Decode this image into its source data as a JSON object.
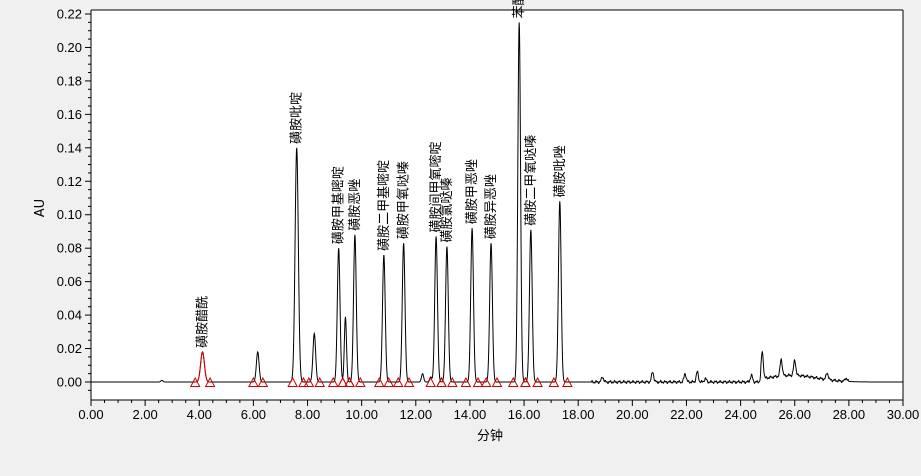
{
  "chart_data": {
    "type": "line",
    "xlabel": "分钟",
    "ylabel": "AU",
    "xlim": [
      0,
      30
    ],
    "ylim": [
      -0.012,
      0.222
    ],
    "x_ticks": [
      "0.00",
      "2.00",
      "4.00",
      "6.00",
      "8.00",
      "10.00",
      "12.00",
      "14.00",
      "16.00",
      "18.00",
      "20.00",
      "22.00",
      "24.00",
      "26.00",
      "28.00",
      "30.00"
    ],
    "y_ticks": [
      "0.00",
      "0.02",
      "0.04",
      "0.06",
      "0.08",
      "0.10",
      "0.12",
      "0.14",
      "0.16",
      "0.18",
      "0.20",
      "0.22"
    ],
    "grid": false,
    "line_color": "#000000",
    "marker_color": "#d40000",
    "baseline": 0.0,
    "peaks": [
      {
        "name": "磺胺醋酰",
        "rt": 4.12,
        "height": 0.018,
        "width": 0.07,
        "labeled": true,
        "start": 3.85,
        "end": 4.4
      },
      {
        "name": "",
        "rt": 6.16,
        "height": 0.018,
        "width": 0.05,
        "labeled": false,
        "start": 6.0,
        "end": 6.35
      },
      {
        "name": "磺胺吡啶",
        "rt": 7.6,
        "height": 0.14,
        "width": 0.06,
        "labeled": true,
        "start": 7.45,
        "end": 7.85
      },
      {
        "name": "",
        "rt": 8.25,
        "height": 0.029,
        "width": 0.05,
        "labeled": false,
        "start": 8.05,
        "end": 8.45
      },
      {
        "name": "磺胺甲基嘧啶",
        "rt": 9.15,
        "height": 0.08,
        "width": 0.05,
        "labeled": true,
        "start": 8.95,
        "end": 9.3
      },
      {
        "name": "",
        "rt": 9.4,
        "height": 0.039,
        "width": 0.04,
        "labeled": false,
        "start": 9.3,
        "end": 9.55
      },
      {
        "name": "磺胺恶唑",
        "rt": 9.75,
        "height": 0.088,
        "width": 0.05,
        "labeled": true,
        "start": 9.55,
        "end": 9.95
      },
      {
        "name": "磺胺二甲基嘧啶",
        "rt": 10.82,
        "height": 0.076,
        "width": 0.05,
        "labeled": true,
        "start": 10.65,
        "end": 11.0
      },
      {
        "name": "磺胺甲氧哒嗪",
        "rt": 11.55,
        "height": 0.083,
        "width": 0.05,
        "labeled": true,
        "start": 11.35,
        "end": 11.75
      },
      {
        "name": "磺胺间甲氧嘧啶",
        "rt": 12.75,
        "height": 0.087,
        "width": 0.05,
        "labeled": true,
        "start": 12.55,
        "end": 12.95
      },
      {
        "name": "磺胺氯哒嗪",
        "rt": 13.15,
        "height": 0.081,
        "width": 0.05,
        "labeled": true,
        "start": 12.95,
        "end": 13.35
      },
      {
        "name": "磺胺甲恶唑",
        "rt": 14.08,
        "height": 0.092,
        "width": 0.05,
        "labeled": true,
        "start": 13.85,
        "end": 14.3
      },
      {
        "name": "磺胺异恶唑",
        "rt": 14.78,
        "height": 0.083,
        "width": 0.05,
        "labeled": true,
        "start": 14.6,
        "end": 15.0
      },
      {
        "name": "苯酰磺胺",
        "rt": 15.82,
        "height": 0.215,
        "width": 0.05,
        "labeled": true,
        "start": 15.6,
        "end": 16.05
      },
      {
        "name": "磺胺二甲氧哒嗪",
        "rt": 16.25,
        "height": 0.091,
        "width": 0.05,
        "labeled": true,
        "start": 16.05,
        "end": 16.5
      },
      {
        "name": "磺胺吡唑",
        "rt": 17.32,
        "height": 0.108,
        "width": 0.05,
        "labeled": true,
        "start": 17.1,
        "end": 17.6
      }
    ],
    "baseline_features": [
      {
        "x": 2.62,
        "y": 0.001
      },
      {
        "x": 12.25,
        "y": 0.005
      },
      {
        "x": 12.55,
        "y": 0.003
      },
      {
        "x": 18.9,
        "y": 0.003
      },
      {
        "x": 20.75,
        "y": 0.006
      },
      {
        "x": 21.95,
        "y": 0.005
      },
      {
        "x": 22.4,
        "y": 0.006
      },
      {
        "x": 22.7,
        "y": 0.002
      },
      {
        "x": 24.4,
        "y": 0.004
      },
      {
        "x": 24.8,
        "y": 0.016
      },
      {
        "x": 25.5,
        "y": 0.01
      },
      {
        "x": 26.0,
        "y": 0.009
      },
      {
        "x": 27.2,
        "y": 0.004
      },
      {
        "x": 27.9,
        "y": 0.002
      }
    ]
  }
}
